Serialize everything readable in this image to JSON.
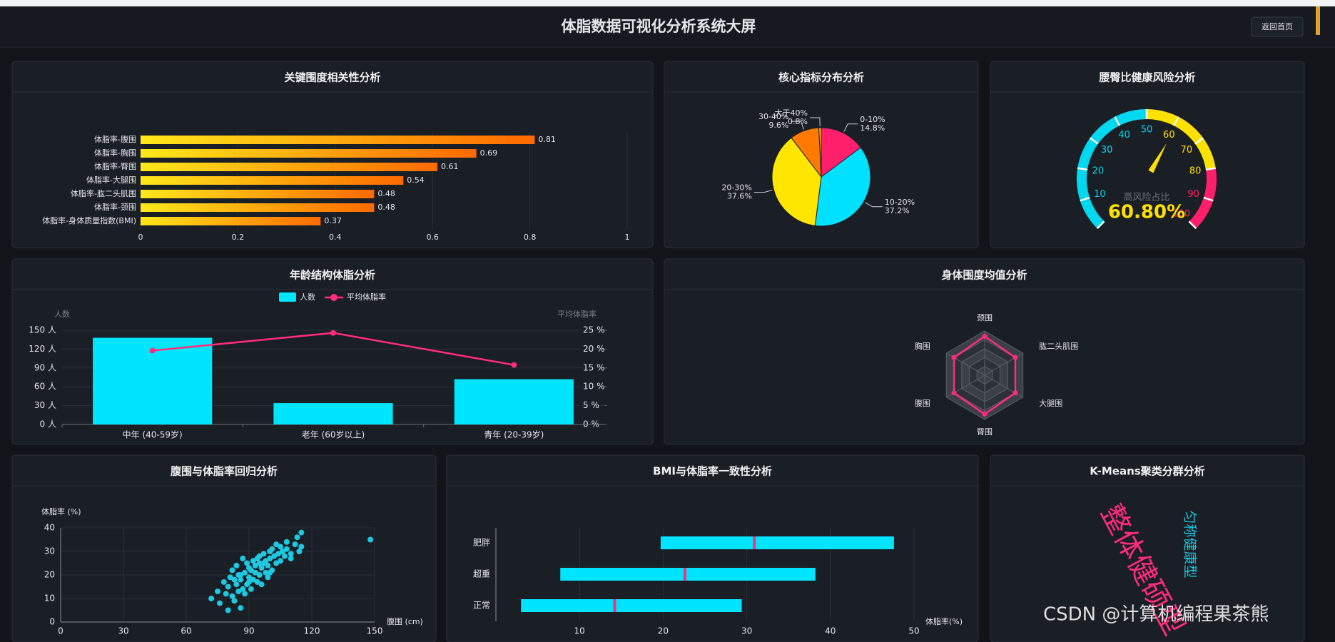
{
  "header": {
    "title": "体脂数据可视化分析系统大屏",
    "button": "返回首页"
  },
  "watermark": "CSDN @计算机编程果茶熊",
  "chart_data": [
    {
      "type": "hbar",
      "title": "关键围度相关性分析",
      "categories": [
        "体脂率-腹围",
        "体脂率-胸围",
        "体脂率-臀围",
        "体脂率-大腿围",
        "体脂率-肱二头肌围",
        "体脂率-颈围",
        "体脂率-身体质量指数(BMI)"
      ],
      "values": [
        0.81,
        0.69,
        0.61,
        0.54,
        0.48,
        0.48,
        0.37
      ],
      "gradient": [
        "#ffe81a",
        "#ff6a00"
      ],
      "xlim": [
        0,
        1
      ],
      "xticks": [
        0,
        0.2,
        0.4,
        0.6,
        0.8,
        1
      ],
      "grid": true
    },
    {
      "type": "pie",
      "title": "核心指标分布分析",
      "categories": [
        "0-10%",
        "10-20%",
        "20-30%",
        "30-40%",
        "大于40%"
      ],
      "values": [
        14.8,
        37.2,
        37.6,
        9.6,
        0.8
      ],
      "value_labels": [
        "14.8%",
        "37.2%",
        "37.6%",
        "9.6%",
        "0.8%"
      ],
      "colors": [
        "#ff1f6b",
        "#00e1ff",
        "#ffe600",
        "#ff7a00",
        "#ffb800"
      ]
    },
    {
      "type": "gauge",
      "title": "腰臀比健康风险分析",
      "label": "高风险占比",
      "value": 60.8,
      "value_label": "60.80%",
      "lim": [
        0,
        100
      ],
      "ticks": [
        0,
        10,
        20,
        30,
        40,
        50,
        60,
        70,
        80,
        90,
        100
      ],
      "bands": [
        {
          "to": 50,
          "color": "#00d8f0"
        },
        {
          "to": 80,
          "color": "#ffe100"
        },
        {
          "to": 100,
          "color": "#ff1f6b"
        }
      ],
      "needle_color": "#ffe100"
    },
    {
      "type": "bar-line",
      "title": "年龄结构体脂分析",
      "categories": [
        "中年 (40-59岁)",
        "老年 (60岁以上)",
        "青年 (20-39岁)"
      ],
      "series": [
        {
          "name": "人数",
          "color": "#00e5ff",
          "values": [
            138,
            34,
            72
          ]
        },
        {
          "name": "平均体脂率",
          "color": "#ff2d7a",
          "axis": "y2",
          "values": [
            19.6,
            24.3,
            15.8
          ]
        }
      ],
      "ylabel": "人数",
      "y2label": "平均体脂率",
      "ylim": [
        0,
        150
      ],
      "yticks": [
        {
          "value": 0,
          "label": "0 人"
        },
        {
          "value": 30,
          "label": "30 人"
        },
        {
          "value": 60,
          "label": "60 人"
        },
        {
          "value": 90,
          "label": "90 人"
        },
        {
          "value": 120,
          "label": "120 人"
        },
        {
          "value": 150,
          "label": "150 人"
        }
      ],
      "y2lim": [
        0,
        25
      ],
      "y2ticks": [
        {
          "value": 0,
          "label": "0 %"
        },
        {
          "value": 5,
          "label": "5 %"
        },
        {
          "value": 10,
          "label": "10 %"
        },
        {
          "value": 15,
          "label": "15 %"
        },
        {
          "value": 20,
          "label": "20 %"
        },
        {
          "value": 25,
          "label": "25 %"
        }
      ],
      "grid": true
    },
    {
      "type": "radar",
      "title": "身体围度均值分析",
      "indicators": [
        "颈围",
        "肱二头肌围",
        "大腿围",
        "臀围",
        "腹围",
        "胸围"
      ],
      "rlim": [
        0,
        1
      ],
      "values": [
        0.88,
        0.8,
        0.8,
        0.88,
        0.8,
        0.8
      ],
      "color": "#ff2d7a"
    },
    {
      "type": "scatter",
      "title": "腹围与体脂率回归分析",
      "xlabel": "腹围 (cm)",
      "ylabel": "体脂率 (%)",
      "x": [
        72,
        75,
        76,
        78,
        79,
        80,
        80,
        81,
        82,
        82,
        83,
        84,
        84,
        85,
        85,
        86,
        86,
        87,
        87,
        88,
        88,
        89,
        89,
        90,
        90,
        91,
        91,
        92,
        92,
        93,
        93,
        94,
        94,
        95,
        95,
        96,
        96,
        97,
        97,
        98,
        98,
        99,
        99,
        100,
        100,
        101,
        101,
        102,
        103,
        103,
        104,
        105,
        105,
        106,
        107,
        108,
        108,
        110,
        110,
        112,
        113,
        114,
        115,
        115,
        148,
        83,
        86,
        90,
        95,
        100
      ],
      "y": [
        10,
        13,
        8,
        17,
        12,
        5,
        15,
        19,
        11,
        22,
        9,
        16,
        24,
        13,
        20,
        6,
        18,
        27,
        14,
        21,
        12,
        25,
        16,
        19,
        23,
        14,
        22,
        26,
        18,
        21,
        24,
        17,
        27,
        20,
        28,
        23,
        16,
        25,
        29,
        21,
        26,
        19,
        24,
        30,
        27,
        22,
        31,
        28,
        25,
        33,
        29,
        26,
        32,
        30,
        28,
        31,
        34,
        29,
        27,
        33,
        36,
        30,
        38,
        32,
        35,
        18,
        20,
        17,
        25,
        21
      ],
      "color": "#1ec8e0",
      "xlim": [
        0,
        150
      ],
      "xticks": [
        0,
        30,
        60,
        90,
        120,
        150
      ],
      "ylim": [
        0,
        40
      ],
      "yticks": [
        0,
        10,
        20,
        30,
        40
      ],
      "grid": true
    },
    {
      "type": "range",
      "title": "BMI与体脂率一致性分析",
      "categories": [
        "正常",
        "超重",
        "肥胖"
      ],
      "min": [
        3,
        7.7,
        19.7
      ],
      "median": [
        14.2,
        22.6,
        30.9
      ],
      "max": [
        29.4,
        38.2,
        47.6
      ],
      "xlabel": "体脂率(%)",
      "xlim": [
        0,
        50
      ],
      "xticks": [
        10,
        20,
        30,
        40,
        50
      ],
      "color": "#00e5ff",
      "median_color": "#ff2d7a",
      "grid": true
    },
    {
      "type": "wordcloud",
      "title": "K-Means聚类分群分析",
      "words": [
        "整体健硕型",
        "匀称健康型"
      ],
      "colors": [
        "#ff2d7a",
        "#1ec8e0"
      ]
    }
  ]
}
